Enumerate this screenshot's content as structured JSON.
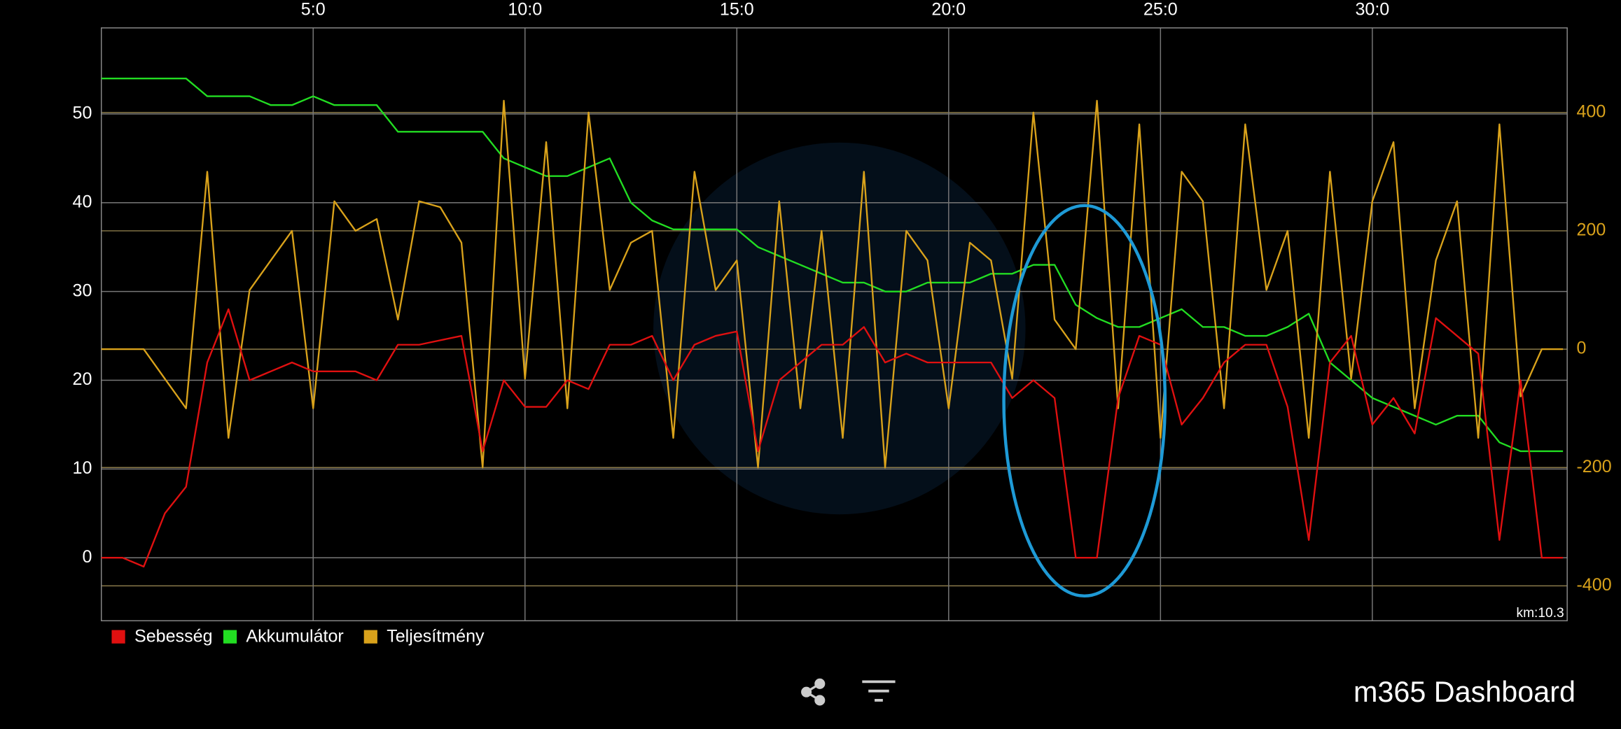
{
  "chart_data": {
    "type": "line",
    "x": [
      0,
      0.5,
      1,
      1.5,
      2,
      2.5,
      3,
      3.5,
      4,
      4.5,
      5,
      5.5,
      6,
      6.5,
      7,
      7.5,
      8,
      8.5,
      9,
      9.5,
      10,
      10.5,
      11,
      11.5,
      12,
      12.5,
      13,
      13.5,
      14,
      14.5,
      15,
      15.5,
      16,
      16.5,
      17,
      17.5,
      18,
      18.5,
      19,
      19.5,
      20,
      20.5,
      21,
      21.5,
      22,
      22.5,
      23,
      23.5,
      24,
      24.5,
      25,
      25.5,
      26,
      26.5,
      27,
      27.5,
      28,
      28.5,
      29,
      29.5,
      30,
      30.5,
      31,
      31.5,
      32,
      32.5,
      33,
      33.5,
      34,
      34.5
    ],
    "series": [
      {
        "name": "Sebesség",
        "color": "#e01010",
        "values": [
          0,
          0,
          -1,
          5,
          8,
          22,
          28,
          20,
          21,
          22,
          21,
          21,
          21,
          20,
          24,
          24,
          24.5,
          25,
          12,
          20,
          17,
          17,
          20,
          19,
          24,
          24,
          25,
          20,
          24,
          25,
          25.5,
          12,
          20,
          22,
          24,
          24,
          26,
          22,
          23,
          22,
          22,
          22,
          22,
          18,
          20,
          18,
          0,
          0,
          18,
          25,
          24,
          15,
          18,
          22,
          24,
          24,
          17,
          2,
          22,
          25,
          15,
          18,
          14,
          27,
          25,
          23,
          2,
          20,
          0,
          0
        ]
      },
      {
        "name": "Akkumulátor",
        "color": "#22dd22",
        "values": [
          54,
          54,
          54,
          54,
          54,
          52,
          52,
          52,
          51,
          51,
          52,
          51,
          51,
          51,
          48,
          48,
          48,
          48,
          48,
          45,
          44,
          43,
          43,
          44,
          45,
          40,
          38,
          37,
          37,
          37,
          37,
          35,
          34,
          33,
          32,
          31,
          31,
          30,
          30,
          31,
          31,
          31,
          32,
          32,
          33,
          33,
          28.5,
          27,
          26,
          26,
          27,
          28,
          26,
          26,
          25,
          25,
          26,
          27.5,
          22,
          20,
          18,
          17,
          16,
          15,
          16,
          16,
          13,
          12,
          12,
          12
        ]
      },
      {
        "name": "Teljesítmény",
        "color": "#d9a21b",
        "axis": "y2",
        "values": [
          0,
          0,
          0,
          -50,
          -100,
          300,
          -150,
          100,
          150,
          200,
          -100,
          250,
          200,
          220,
          50,
          250,
          240,
          180,
          -200,
          420,
          -50,
          350,
          -100,
          400,
          100,
          180,
          200,
          -150,
          300,
          100,
          150,
          -200,
          250,
          -100,
          200,
          -150,
          300,
          -200,
          200,
          150,
          -100,
          180,
          150,
          -50,
          400,
          50,
          0,
          420,
          -100,
          380,
          -150,
          300,
          250,
          -100,
          380,
          100,
          200,
          -150,
          300,
          -50,
          250,
          350,
          -100,
          150,
          250,
          -150,
          380,
          -80,
          0,
          0
        ]
      }
    ],
    "xlim": [
      0,
      34.6
    ],
    "xticks": [
      {
        "value": 5,
        "label": "5:0"
      },
      {
        "value": 10,
        "label": "10:0"
      },
      {
        "value": 15,
        "label": "15:0"
      },
      {
        "value": 20,
        "label": "20:0"
      },
      {
        "value": 25,
        "label": "25:0"
      },
      {
        "value": 30,
        "label": "30:0"
      }
    ],
    "ylim": [
      -7.1,
      59.7
    ],
    "yticks": [
      0,
      10,
      20,
      30,
      40,
      50
    ],
    "y2lim": [
      -459,
      543
    ],
    "y2ticks": [
      -400,
      -200,
      0,
      200,
      400
    ],
    "grid": true,
    "annotation": "km:10.3"
  },
  "app": {
    "title": "m365 Dashboard"
  }
}
